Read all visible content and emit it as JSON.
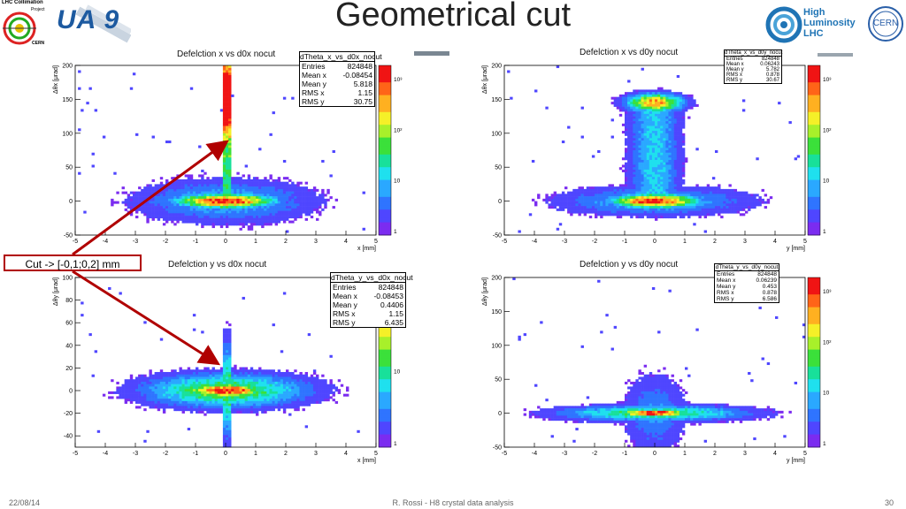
{
  "slide": {
    "title": "Geometrical cut",
    "footer_date": "22/08/14",
    "footer_center": "R. Rossi - H8 crystal data analysis",
    "page_number": "30"
  },
  "logos": {
    "lhc_collimation": {
      "line1": "LHC Collimation",
      "line2": "Project",
      "line3": "CERN"
    },
    "ua9": "UA 9",
    "hilumi": {
      "line1": "High",
      "line2": "Luminosity",
      "line3": "LHC"
    },
    "cern": "CERN"
  },
  "annotation": {
    "label": "Cut -> [-0,1;0,2] mm"
  },
  "colors": {
    "arrow": "#b00000"
  },
  "chart_data": [
    {
      "type": "heatmap",
      "title": "Defelction x vs d0x nocut",
      "xlabel": "x [mm]",
      "ylabel": "Δθx [μrad]",
      "xlim": [
        -5,
        5
      ],
      "ylim": [
        -50,
        200
      ],
      "x_ticks": [
        "-5",
        "-4",
        "-3",
        "-2",
        "-1",
        "0",
        "1",
        "2",
        "3",
        "4",
        "5"
      ],
      "y_ticks": [
        "-50",
        "0",
        "50",
        "100",
        "150",
        "200"
      ],
      "z_ticks": [
        "1",
        "10",
        "10²",
        "10³"
      ],
      "log_z": true,
      "stats": {
        "name": "dTheta_x_vs_d0x_nocut",
        "rows": [
          [
            "Entries",
            "824848"
          ],
          [
            "Mean x",
            "-0.08454"
          ],
          [
            "Mean y",
            "5.818"
          ],
          [
            "RMS x",
            "1.15"
          ],
          [
            "RMS y",
            "30.75"
          ]
        ]
      }
    },
    {
      "type": "heatmap",
      "title": "Defelction x vs d0y nocut",
      "xlabel": "y [mm]",
      "ylabel": "Δθx [μrad]",
      "xlim": [
        -5,
        5
      ],
      "ylim": [
        -50,
        200
      ],
      "x_ticks": [
        "-5",
        "-4",
        "-3",
        "-2",
        "-1",
        "0",
        "1",
        "2",
        "3",
        "4",
        "5"
      ],
      "y_ticks": [
        "-50",
        "0",
        "50",
        "100",
        "150",
        "200"
      ],
      "z_ticks": [
        "1",
        "10",
        "10²",
        "10³"
      ],
      "log_z": true,
      "stats": {
        "name": "dTheta_x_vs_d0y_nocut",
        "rows": [
          [
            "Entries",
            "824848"
          ],
          [
            "Mean x",
            "0.06243"
          ],
          [
            "Mean y",
            "5.782"
          ],
          [
            "RMS x",
            "0.878"
          ],
          [
            "RMS y",
            "30.67"
          ]
        ]
      }
    },
    {
      "type": "heatmap",
      "title": "Defelction y vs d0x nocut",
      "xlabel": "x [mm]",
      "ylabel": "Δθy [μrad]",
      "xlim": [
        -5,
        5
      ],
      "ylim": [
        -50,
        100
      ],
      "x_ticks": [
        "-5",
        "-4",
        "-3",
        "-2",
        "-1",
        "0",
        "1",
        "2",
        "3",
        "4",
        "5"
      ],
      "y_ticks": [
        "-40",
        "-20",
        "0",
        "20",
        "40",
        "60",
        "80",
        "100"
      ],
      "z_ticks": [
        "1",
        "10",
        "10²"
      ],
      "log_z": true,
      "stats": {
        "name": "dTheta_y_vs_d0x_nocut",
        "rows": [
          [
            "Entries",
            "824848"
          ],
          [
            "Mean x",
            "-0.08453"
          ],
          [
            "Mean y",
            "0.4406"
          ],
          [
            "RMS x",
            "1.15"
          ],
          [
            "RMS y",
            "6.435"
          ]
        ]
      }
    },
    {
      "type": "heatmap",
      "title": "Defelction y vs d0y nocut",
      "xlabel": "y [mm]",
      "ylabel": "Δθy [μrad]",
      "xlim": [
        -5,
        5
      ],
      "ylim": [
        -50,
        200
      ],
      "x_ticks": [
        "-5",
        "-4",
        "-3",
        "-2",
        "-1",
        "0",
        "1",
        "2",
        "3",
        "4",
        "5"
      ],
      "y_ticks": [
        "-50",
        "0",
        "50",
        "100",
        "150",
        "200"
      ],
      "z_ticks": [
        "1",
        "10",
        "10²",
        "10³"
      ],
      "log_z": true,
      "stats": {
        "name": "dTheta_y_vs_d0y_nocut",
        "rows": [
          [
            "Entries",
            "824848"
          ],
          [
            "Mean x",
            "0.06239"
          ],
          [
            "Mean y",
            "0.453"
          ],
          [
            "RMS x",
            "0.878"
          ],
          [
            "RMS y",
            "6.586"
          ]
        ]
      }
    }
  ]
}
